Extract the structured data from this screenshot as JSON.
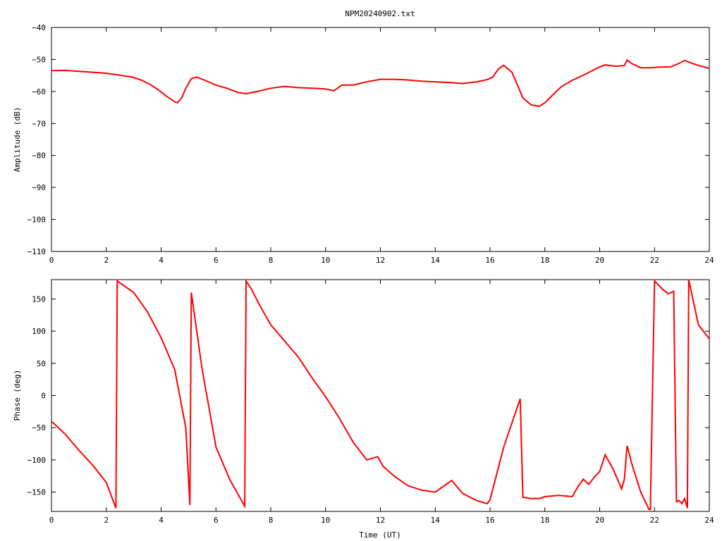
{
  "chart_data": [
    {
      "type": "line",
      "title": "NPM20240902.txt",
      "xlabel": "",
      "ylabel": "Amplitude (dB)",
      "xlim": [
        0,
        24
      ],
      "ylim": [
        -110,
        -40
      ],
      "xticks": [
        0,
        2,
        4,
        6,
        8,
        10,
        12,
        14,
        16,
        18,
        20,
        22,
        24
      ],
      "yticks": [
        -110,
        -100,
        -90,
        -80,
        -70,
        -60,
        -50,
        -40
      ],
      "grid": false,
      "series_color": "#ff0000",
      "series": [
        {
          "x": [
            0,
            0.5,
            1,
            1.5,
            2,
            2.5,
            3,
            3.3,
            3.6,
            3.9,
            4.2,
            4.5,
            4.6,
            4.75,
            4.9,
            5.1,
            5.3,
            5.6,
            6,
            6.4,
            6.8,
            7.1,
            7.5,
            8,
            8.5,
            9,
            9.5,
            10,
            10.3,
            10.6,
            11,
            11.5,
            12,
            12.5,
            13,
            13.5,
            14,
            14.5,
            15,
            15.5,
            15.9,
            16.1,
            16.3,
            16.5,
            16.8,
            17,
            17.2,
            17.5,
            17.8,
            18,
            18.3,
            18.6,
            19,
            19.5,
            20,
            20.2,
            20.6,
            20.9,
            21.0,
            21.2,
            21.5,
            21.8,
            22.2,
            22.6,
            22.9,
            23.1,
            23.5,
            24
          ],
          "y": [
            -53.5,
            -53.4,
            -53.7,
            -54,
            -54.3,
            -54.9,
            -55.6,
            -56.5,
            -57.8,
            -59.5,
            -61.5,
            -63.2,
            -63.5,
            -62,
            -59,
            -56,
            -55.5,
            -56.5,
            -58,
            -59,
            -60.3,
            -60.7,
            -60,
            -59,
            -58.4,
            -58.8,
            -59,
            -59.2,
            -59.8,
            -58,
            -58,
            -57,
            -56.2,
            -56.2,
            -56.4,
            -56.8,
            -57,
            -57.2,
            -57.5,
            -57,
            -56.3,
            -55.5,
            -53,
            -51.8,
            -54,
            -58,
            -62,
            -64.2,
            -64.6,
            -63.5,
            -61,
            -58.5,
            -56.5,
            -54.5,
            -52.3,
            -51.7,
            -52.1,
            -51.9,
            -50.2,
            -51.4,
            -52.6,
            -52.6,
            -52.4,
            -52.3,
            -51.2,
            -50.3,
            -51.6,
            -52.8
          ]
        }
      ]
    },
    {
      "type": "line",
      "title": "",
      "xlabel": "Time (UT)",
      "ylabel": "Phase (deg)",
      "xlim": [
        0,
        24
      ],
      "ylim": [
        -180,
        180
      ],
      "xticks": [
        0,
        2,
        4,
        6,
        8,
        10,
        12,
        14,
        16,
        18,
        20,
        22,
        24
      ],
      "yticks": [
        -150,
        -100,
        -50,
        0,
        50,
        100,
        150
      ],
      "grid": false,
      "series_color": "#ff0000",
      "series": [
        {
          "x": [
            0,
            0.5,
            1,
            1.5,
            2,
            2.35,
            2.4,
            2.5,
            3,
            3.5,
            4,
            4.5,
            4.9,
            5.05,
            5.1,
            5.5,
            6,
            6.5,
            7.05,
            7.1,
            7.3,
            7.6,
            8,
            8.5,
            9,
            9.5,
            10,
            10.5,
            11,
            11.5,
            11.9,
            12.1,
            12.5,
            13,
            13.5,
            14,
            14.4,
            14.6,
            15,
            15.5,
            15.9,
            16,
            16.5,
            17.1,
            17.2,
            17.5,
            17.8,
            18,
            18.5,
            19,
            19.2,
            19.4,
            19.6,
            19.8,
            20,
            20.2,
            20.5,
            20.8,
            20.9,
            21.0,
            21.2,
            21.5,
            21.8,
            21.85,
            22.0,
            22.3,
            22.5,
            22.7,
            22.8,
            22.9,
            23.0,
            23.1,
            23.2,
            23.25,
            23.6,
            24
          ],
          "y": [
            -40,
            -60,
            -85,
            -108,
            -135,
            -175,
            178,
            175,
            160,
            130,
            90,
            40,
            -50,
            -170,
            160,
            40,
            -80,
            -130,
            -172,
            178,
            165,
            140,
            110,
            85,
            60,
            28,
            -2,
            -35,
            -72,
            -100,
            -95,
            -110,
            -125,
            -140,
            -147,
            -150,
            -138,
            -132,
            -152,
            -163,
            -168,
            -162,
            -80,
            -5,
            -158,
            -160,
            -160,
            -157,
            -155,
            -157,
            -142,
            -130,
            -138,
            -127,
            -118,
            -92,
            -115,
            -145,
            -130,
            -78,
            -110,
            -150,
            -177,
            -177,
            178,
            165,
            158,
            162,
            -165,
            -163,
            -168,
            -160,
            -175,
            180,
            110,
            88
          ]
        }
      ]
    }
  ]
}
